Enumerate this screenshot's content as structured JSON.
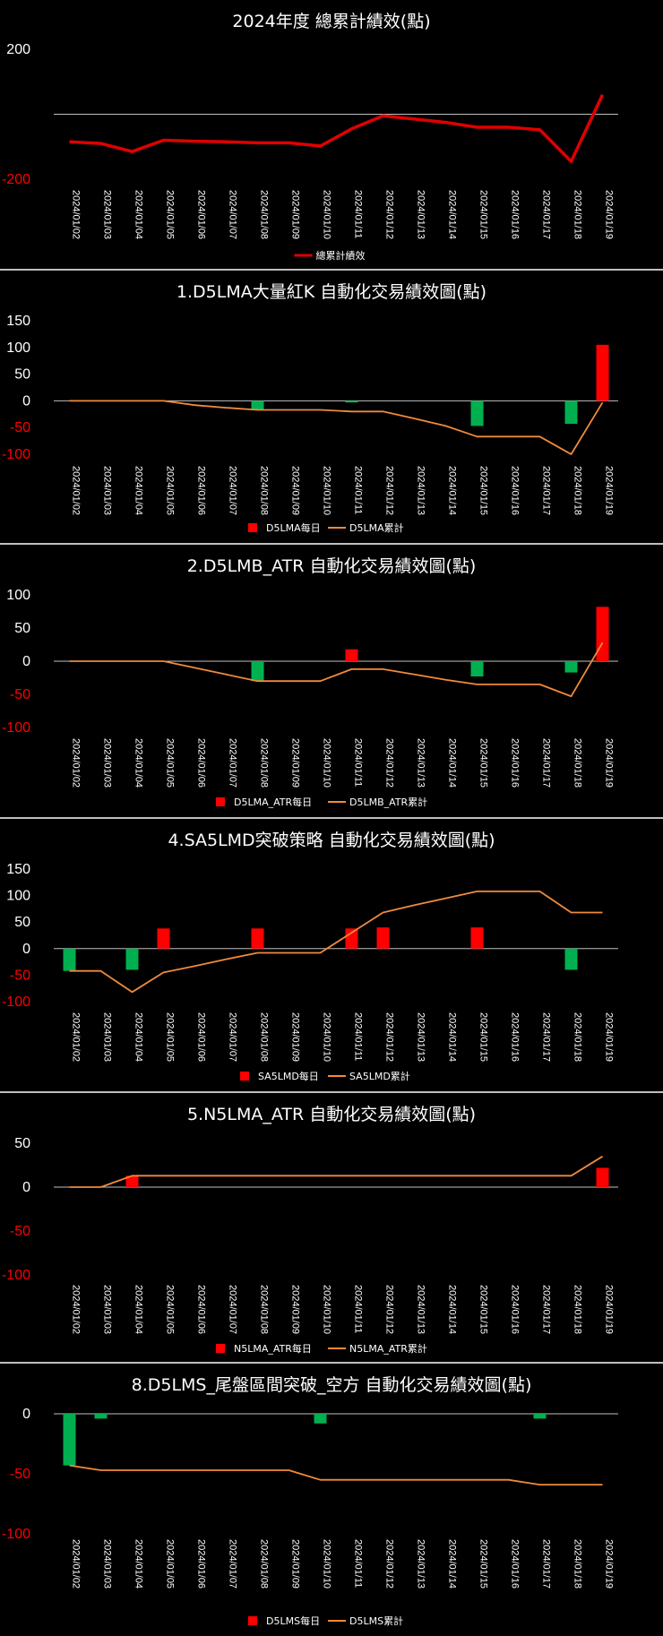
{
  "colors": {
    "background": "#000000",
    "total_line": "#e00000",
    "cum_line": "#f08a3c",
    "bar_positive": "#ff0000",
    "bar_negative": "#00b050",
    "axis": "#bfbfbf",
    "neg_tick": "#ff0000",
    "pos_tick": "#ffffff"
  },
  "chart_data": [
    {
      "type": "line",
      "title": "2024年度 總累計績效(點)",
      "ylim": [
        -200,
        200
      ],
      "yticks": [
        "200",
        "-200"
      ],
      "ytick_values": [
        200,
        -200
      ],
      "categories": [
        "2024/01/02",
        "2024/01/03",
        "2024/01/04",
        "2024/01/05",
        "2024/01/06",
        "2024/01/07",
        "2024/01/08",
        "2024/01/09",
        "2024/01/10",
        "2024/01/11",
        "2024/01/12",
        "2024/01/13",
        "2024/01/14",
        "2024/01/15",
        "2024/01/16",
        "2024/01/17",
        "2024/01/18",
        "2024/01/19"
      ],
      "series": [
        {
          "name": "總累計績效",
          "kind": "line",
          "values": [
            -85,
            -90,
            -115,
            -80,
            -83,
            -85,
            -88,
            -88,
            -98,
            -45,
            -5,
            -15,
            -25,
            -40,
            -40,
            -48,
            -145,
            60
          ]
        }
      ],
      "legend": "bottom"
    },
    {
      "type": "bar+line",
      "title": "1.D5LMA大量紅K 自動化交易績效圖(點)",
      "ylim": [
        -100,
        150
      ],
      "yticks": [
        "150",
        "100",
        "50",
        "0",
        "-50",
        "-100"
      ],
      "ytick_values": [
        150,
        100,
        50,
        0,
        -50,
        -100
      ],
      "categories": [
        "2024/01/02",
        "2024/01/03",
        "2024/01/04",
        "2024/01/05",
        "2024/01/06",
        "2024/01/07",
        "2024/01/08",
        "2024/01/09",
        "2024/01/10",
        "2024/01/11",
        "2024/01/12",
        "2024/01/13",
        "2024/01/14",
        "2024/01/15",
        "2024/01/16",
        "2024/01/17",
        "2024/01/18",
        "2024/01/19"
      ],
      "series": [
        {
          "name": "D5LMA每日",
          "kind": "bar",
          "values": [
            0,
            0,
            0,
            0,
            0,
            0,
            -17,
            0,
            0,
            -3,
            0,
            0,
            0,
            -47,
            0,
            0,
            -43,
            105
          ]
        },
        {
          "name": "D5LMA累計",
          "kind": "line",
          "values": [
            0,
            0,
            0,
            0,
            -8,
            -13,
            -17,
            -17,
            -17,
            -20,
            -20,
            -33,
            -47,
            -67,
            -67,
            -67,
            -100,
            -3
          ]
        }
      ],
      "legend": "bottom"
    },
    {
      "type": "bar+line",
      "title": "2.D5LMB_ATR  自動化交易績效圖(點)",
      "ylim": [
        -100,
        100
      ],
      "yticks": [
        "100",
        "50",
        "0",
        "-50",
        "-100"
      ],
      "ytick_values": [
        100,
        50,
        0,
        -50,
        -100
      ],
      "categories": [
        "2024/01/02",
        "2024/01/03",
        "2024/01/04",
        "2024/01/05",
        "2024/01/06",
        "2024/01/07",
        "2024/01/08",
        "2024/01/09",
        "2024/01/10",
        "2024/01/11",
        "2024/01/12",
        "2024/01/13",
        "2024/01/14",
        "2024/01/15",
        "2024/01/16",
        "2024/01/17",
        "2024/01/18",
        "2024/01/19"
      ],
      "series": [
        {
          "name": "D5LMA_ATR每日",
          "kind": "bar",
          "values": [
            0,
            0,
            0,
            0,
            0,
            0,
            -30,
            0,
            0,
            18,
            0,
            0,
            0,
            -23,
            0,
            0,
            -17,
            82
          ]
        },
        {
          "name": "D5LMB_ATR累計",
          "kind": "line",
          "values": [
            0,
            0,
            0,
            0,
            -10,
            -20,
            -30,
            -30,
            -30,
            -12,
            -12,
            -20,
            -28,
            -35,
            -35,
            -35,
            -53,
            28
          ]
        }
      ],
      "legend": "bottom"
    },
    {
      "type": "bar+line",
      "title": "4.SA5LMD突破策略  自動化交易績效圖(點)",
      "ylim": [
        -100,
        150
      ],
      "yticks": [
        "150",
        "100",
        "50",
        "0",
        "-50",
        "-100"
      ],
      "ytick_values": [
        150,
        100,
        50,
        0,
        -50,
        -100
      ],
      "categories": [
        "2024/01/02",
        "2024/01/03",
        "2024/01/04",
        "2024/01/05",
        "2024/01/06",
        "2024/01/07",
        "2024/01/08",
        "2024/01/09",
        "2024/01/10",
        "2024/01/11",
        "2024/01/12",
        "2024/01/13",
        "2024/01/14",
        "2024/01/15",
        "2024/01/16",
        "2024/01/17",
        "2024/01/18",
        "2024/01/19"
      ],
      "series": [
        {
          "name": "SA5LMD每日",
          "kind": "bar",
          "values": [
            -42,
            0,
            -40,
            38,
            0,
            0,
            38,
            0,
            0,
            38,
            40,
            0,
            0,
            40,
            0,
            0,
            -40,
            0
          ]
        },
        {
          "name": "SA5LMD累計",
          "kind": "line",
          "values": [
            -42,
            -42,
            -82,
            -45,
            -33,
            -20,
            -8,
            -8,
            -8,
            30,
            68,
            82,
            95,
            108,
            108,
            108,
            68,
            68
          ]
        }
      ],
      "legend": "bottom"
    },
    {
      "type": "bar+line",
      "title": "5.N5LMA_ATR  自動化交易績效圖(點)",
      "ylim": [
        -100,
        50
      ],
      "yticks": [
        "50",
        "0",
        "-50",
        "-100"
      ],
      "ytick_values": [
        50,
        0,
        -50,
        -100
      ],
      "categories": [
        "2024/01/02",
        "2024/01/03",
        "2024/01/04",
        "2024/01/05",
        "2024/01/06",
        "2024/01/07",
        "2024/01/08",
        "2024/01/09",
        "2024/01/10",
        "2024/01/11",
        "2024/01/12",
        "2024/01/13",
        "2024/01/14",
        "2024/01/15",
        "2024/01/16",
        "2024/01/17",
        "2024/01/18",
        "2024/01/19"
      ],
      "series": [
        {
          "name": "N5LMA_ATR每日",
          "kind": "bar",
          "values": [
            0,
            0,
            13,
            0,
            0,
            0,
            0,
            0,
            0,
            0,
            0,
            0,
            0,
            0,
            0,
            0,
            0,
            22
          ]
        },
        {
          "name": "N5LMA_ATR累計",
          "kind": "line",
          "values": [
            0,
            0,
            13,
            13,
            13,
            13,
            13,
            13,
            13,
            13,
            13,
            13,
            13,
            13,
            13,
            13,
            13,
            35
          ]
        }
      ],
      "legend": "bottom"
    },
    {
      "type": "bar+line",
      "title": "8.D5LMS_尾盤區間突破_空方  自動化交易績效圖(點)",
      "ylim": [
        -100,
        0
      ],
      "yticks": [
        "0",
        "-50",
        "-100"
      ],
      "ytick_values": [
        0,
        -50,
        -100
      ],
      "categories": [
        "2024/01/02",
        "2024/01/03",
        "2024/01/04",
        "2024/01/05",
        "2024/01/06",
        "2024/01/07",
        "2024/01/08",
        "2024/01/09",
        "2024/01/10",
        "2024/01/11",
        "2024/01/12",
        "2024/01/13",
        "2024/01/14",
        "2024/01/15",
        "2024/01/16",
        "2024/01/17",
        "2024/01/18",
        "2024/01/19"
      ],
      "series": [
        {
          "name": "D5LMS每日",
          "kind": "bar",
          "values": [
            -43,
            -4,
            0,
            0,
            0,
            0,
            0,
            0,
            -8,
            0,
            0,
            0,
            0,
            0,
            0,
            -4,
            0,
            0
          ]
        },
        {
          "name": "D5LMS累計",
          "kind": "line",
          "values": [
            -43,
            -47,
            -47,
            -47,
            -47,
            -47,
            -47,
            -47,
            -55,
            -55,
            -55,
            -55,
            -55,
            -55,
            -55,
            -59,
            -59,
            -59
          ]
        }
      ],
      "legend": "bottom"
    }
  ]
}
